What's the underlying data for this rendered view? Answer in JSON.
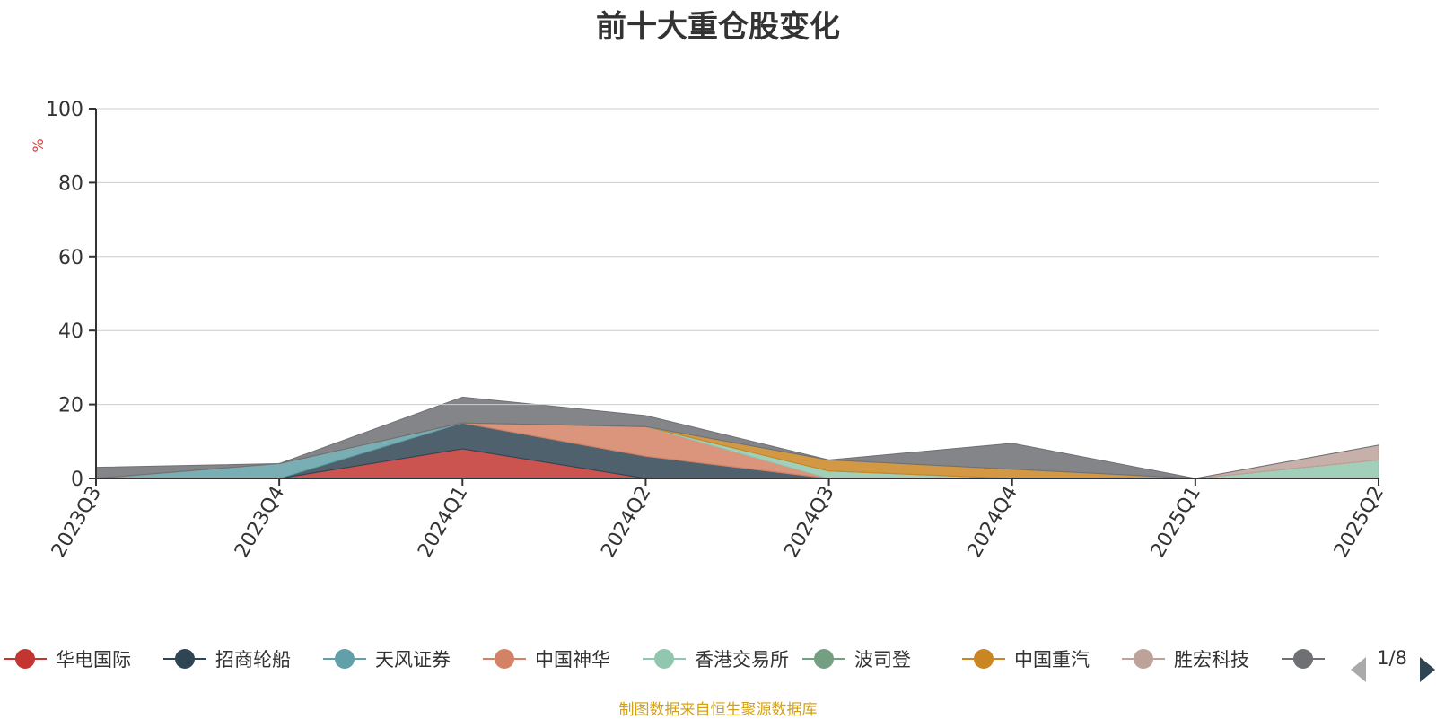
{
  "title": "前十大重仓股变化",
  "source_note": "制图数据来自恒生聚源数据库",
  "legend_page": "1/8",
  "chart_data": {
    "type": "area",
    "stacked": true,
    "ylabel": "%",
    "ylim": [
      0,
      100
    ],
    "yticks": [
      0,
      20,
      40,
      60,
      80,
      100
    ],
    "grid": true,
    "legend_position": "bottom",
    "categories": [
      "2023Q3",
      "2023Q4",
      "2024Q1",
      "2024Q2",
      "2024Q3",
      "2024Q4",
      "2025Q1",
      "2025Q2"
    ],
    "series": [
      {
        "name": "华电国际",
        "color": "#c23531",
        "values": [
          0,
          0,
          8,
          0,
          0,
          0,
          0,
          0
        ]
      },
      {
        "name": "招商轮船",
        "color": "#2f4554",
        "values": [
          0,
          0,
          7,
          6,
          0,
          0,
          0,
          0
        ]
      },
      {
        "name": "天风证券",
        "color": "#61a0a8",
        "values": [
          0,
          4,
          0,
          0,
          0,
          0,
          0,
          0
        ]
      },
      {
        "name": "中国神华",
        "color": "#d48265",
        "values": [
          0,
          0,
          0,
          8,
          0,
          0,
          0,
          0
        ]
      },
      {
        "name": "香港交易所",
        "color": "#91c7ae",
        "values": [
          0,
          0,
          0,
          0,
          2,
          0,
          0,
          5
        ]
      },
      {
        "name": "波司登",
        "color": "#749f83",
        "values": [
          0,
          0,
          0,
          0,
          0,
          0,
          0,
          0
        ]
      },
      {
        "name": "中国重汽",
        "color": "#ca8622",
        "values": [
          0,
          0,
          0,
          0,
          3,
          2.5,
          0,
          0
        ]
      },
      {
        "name": "胜宏科技",
        "color": "#bda29a",
        "values": [
          0,
          0,
          0,
          0,
          0,
          0,
          0,
          4
        ]
      },
      {
        "name": "",
        "color": "#6e7074",
        "values": [
          3,
          0,
          7,
          3,
          0,
          7,
          0,
          0
        ]
      }
    ]
  }
}
